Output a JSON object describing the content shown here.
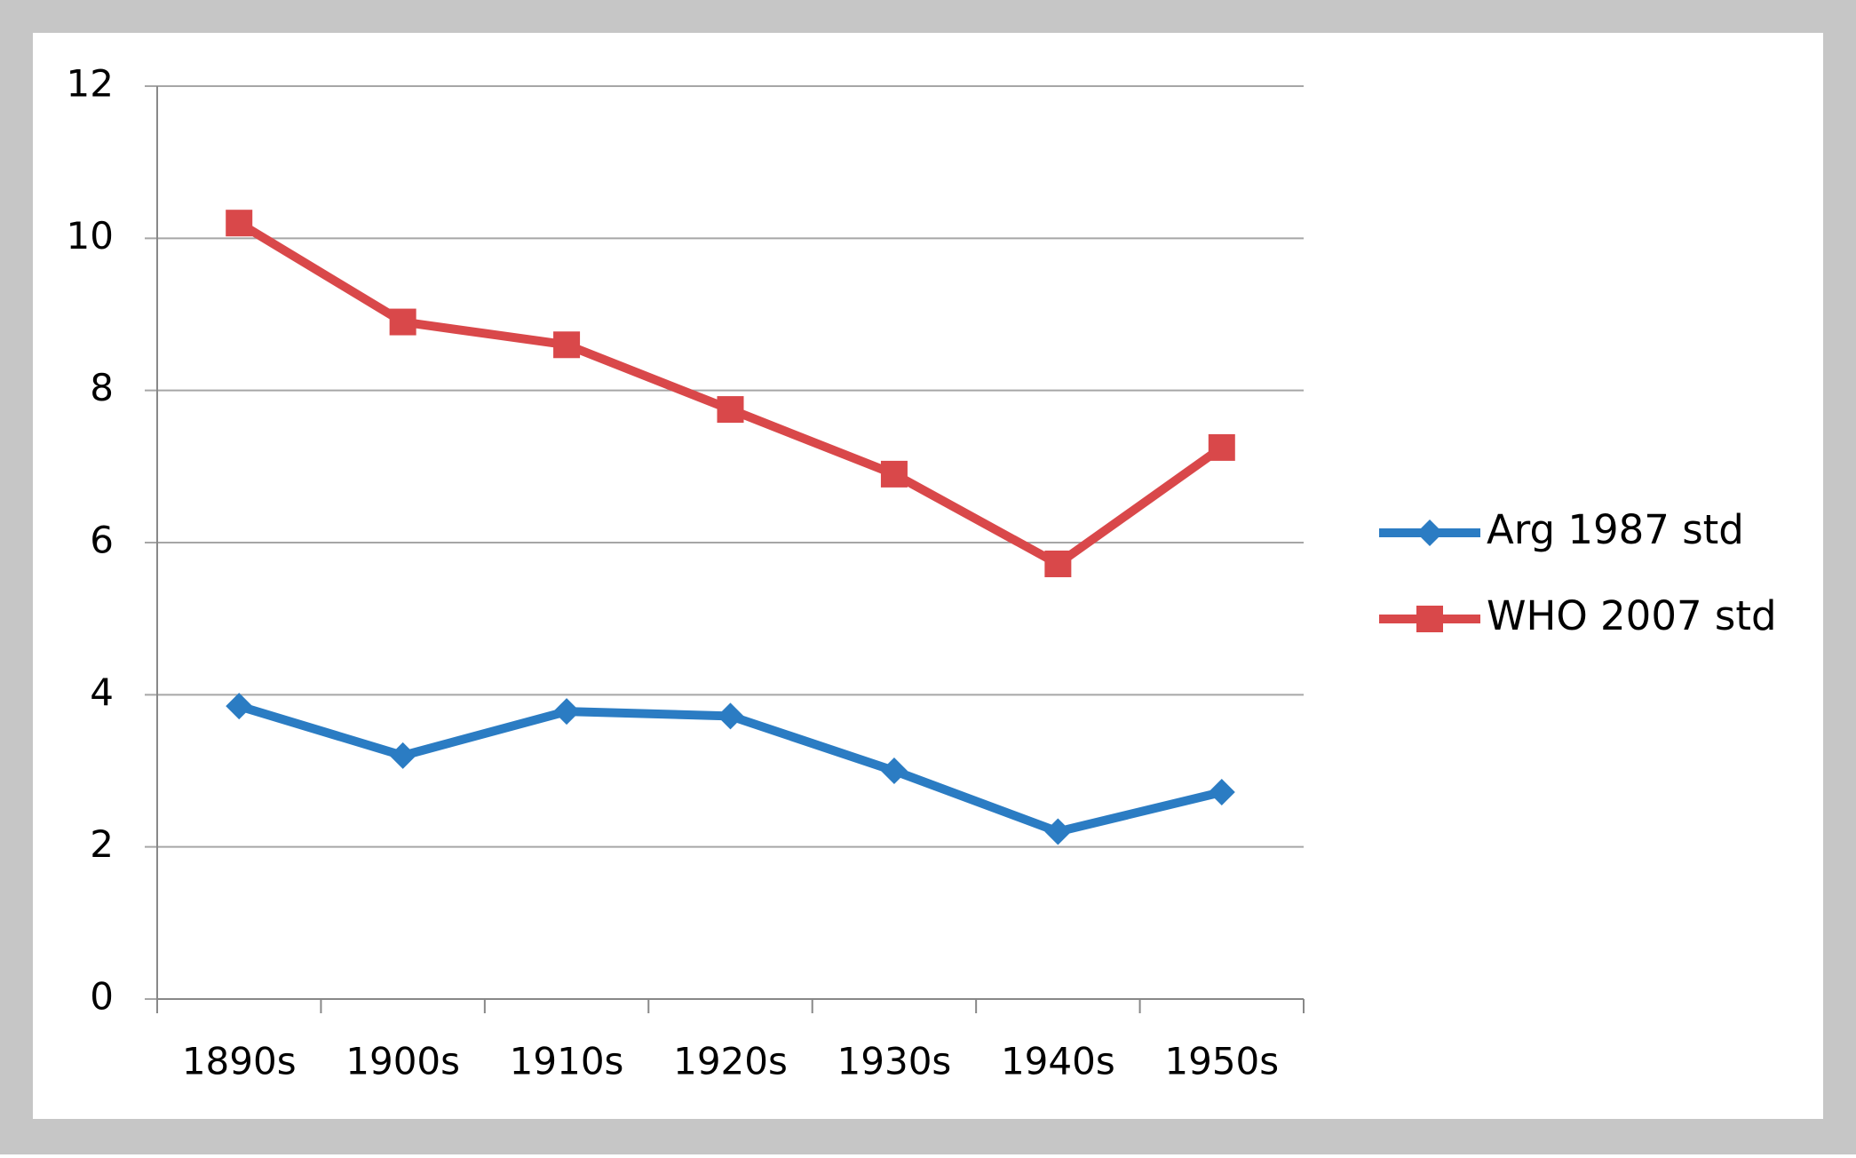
{
  "chart_data": {
    "type": "line",
    "categories": [
      "1890s",
      "1900s",
      "1910s",
      "1920s",
      "1930s",
      "1940s",
      "1950s"
    ],
    "series": [
      {
        "name": "Arg 1987 std",
        "color": "#2b7cc3",
        "marker": "diamond",
        "values": [
          3.85,
          3.2,
          3.78,
          3.72,
          3.0,
          2.2,
          2.72
        ]
      },
      {
        "name": "WHO 2007 std",
        "color": "#d9484a",
        "marker": "square",
        "values": [
          10.2,
          8.9,
          8.6,
          7.75,
          6.9,
          5.72,
          7.25
        ]
      }
    ],
    "ylim": [
      0,
      12
    ],
    "yticks": [
      0,
      2,
      4,
      6,
      8,
      10,
      12
    ],
    "grid": true,
    "legend": "right"
  }
}
